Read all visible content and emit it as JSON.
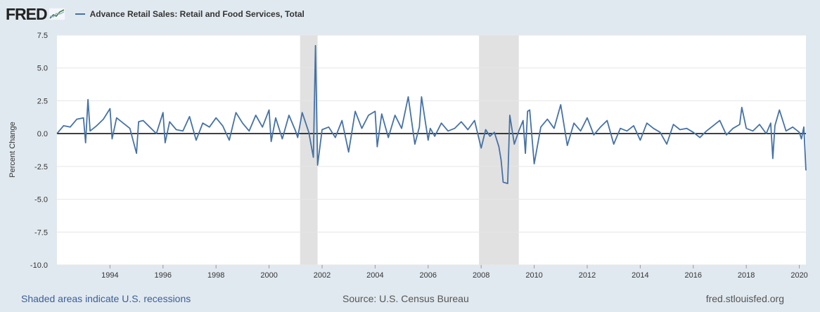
{
  "brand": {
    "name": "FRED"
  },
  "legend": {
    "series_name": "Advance Retail Sales: Retail and Food Services, Total",
    "color": "#4572a7"
  },
  "footer": {
    "recessions_note": "Shaded areas indicate U.S. recessions",
    "source": "Source: U.S. Census Bureau",
    "site": "fred.stlouisfed.org"
  },
  "chart_data": {
    "type": "line",
    "ylabel": "Percent Change",
    "ylim": [
      -10.0,
      7.5
    ],
    "yticks": [
      "7.5",
      "5.0",
      "2.5",
      "0.0",
      "-2.5",
      "-5.0",
      "-7.5",
      "-10.0"
    ],
    "ytick_values": [
      7.5,
      5.0,
      2.5,
      0.0,
      -2.5,
      -5.0,
      -7.5,
      -10.0
    ],
    "xticks": [
      "1994",
      "1996",
      "1998",
      "2000",
      "2002",
      "2004",
      "2006",
      "2008",
      "2010",
      "2012",
      "2014",
      "2016",
      "2018",
      "2020"
    ],
    "xrange": [
      1992.0,
      2020.25
    ],
    "grid": true,
    "zero_line": true,
    "recessions": [
      [
        2001.17,
        2001.83
      ],
      [
        2007.92,
        2009.42
      ]
    ],
    "series": [
      {
        "name": "Advance Retail Sales: Retail and Food Services, Total",
        "color": "#4572a7",
        "x": [
          1992.0,
          1992.25,
          1992.5,
          1992.75,
          1993.0,
          1993.08,
          1993.17,
          1993.25,
          1993.5,
          1993.75,
          1994.0,
          1994.08,
          1994.25,
          1994.5,
          1994.75,
          1995.0,
          1995.08,
          1995.25,
          1995.5,
          1995.75,
          1996.0,
          1996.08,
          1996.25,
          1996.5,
          1996.75,
          1997.0,
          1997.25,
          1997.5,
          1997.75,
          1998.0,
          1998.25,
          1998.5,
          1998.75,
          1999.0,
          1999.25,
          1999.5,
          1999.75,
          2000.0,
          2000.08,
          2000.25,
          2000.5,
          2000.75,
          2001.0,
          2001.08,
          2001.25,
          2001.5,
          2001.67,
          2001.75,
          2001.83,
          2002.0,
          2002.25,
          2002.5,
          2002.75,
          2003.0,
          2003.25,
          2003.5,
          2003.75,
          2004.0,
          2004.08,
          2004.25,
          2004.5,
          2004.75,
          2005.0,
          2005.25,
          2005.5,
          2005.67,
          2005.75,
          2006.0,
          2006.08,
          2006.25,
          2006.5,
          2006.75,
          2007.0,
          2007.25,
          2007.5,
          2007.75,
          2008.0,
          2008.17,
          2008.33,
          2008.5,
          2008.67,
          2008.75,
          2008.83,
          2009.0,
          2009.08,
          2009.25,
          2009.42,
          2009.58,
          2009.67,
          2009.75,
          2009.83,
          2010.0,
          2010.25,
          2010.5,
          2010.75,
          2011.0,
          2011.25,
          2011.5,
          2011.75,
          2012.0,
          2012.25,
          2012.5,
          2012.75,
          2013.0,
          2013.25,
          2013.5,
          2013.75,
          2014.0,
          2014.25,
          2014.5,
          2014.75,
          2015.0,
          2015.25,
          2015.5,
          2015.75,
          2016.0,
          2016.25,
          2016.5,
          2016.75,
          2017.0,
          2017.25,
          2017.5,
          2017.75,
          2017.83,
          2018.0,
          2018.25,
          2018.5,
          2018.75,
          2018.92,
          2019.0,
          2019.08,
          2019.25,
          2019.5,
          2019.75,
          2020.0,
          2020.08,
          2020.17,
          2020.25
        ],
        "y": [
          0.0,
          0.6,
          0.5,
          1.1,
          1.2,
          -0.7,
          2.6,
          0.2,
          0.6,
          1.1,
          1.9,
          -0.4,
          1.2,
          0.8,
          0.4,
          -1.5,
          0.9,
          1.0,
          0.5,
          0.0,
          1.6,
          -0.7,
          0.9,
          0.3,
          0.2,
          1.3,
          -0.5,
          0.8,
          0.5,
          1.2,
          0.6,
          -0.5,
          1.6,
          0.8,
          0.2,
          1.4,
          0.5,
          1.8,
          -0.6,
          1.2,
          -0.4,
          1.4,
          0.2,
          -0.3,
          1.6,
          0.1,
          -1.8,
          6.7,
          -2.4,
          0.3,
          0.5,
          -0.3,
          1.0,
          -1.4,
          1.7,
          0.4,
          1.4,
          1.7,
          -1.0,
          1.5,
          -0.3,
          1.4,
          0.4,
          2.8,
          -0.8,
          0.5,
          2.8,
          -0.5,
          0.4,
          -0.2,
          0.8,
          0.2,
          0.4,
          0.9,
          0.3,
          1.0,
          -1.1,
          0.3,
          -0.2,
          0.1,
          -1.0,
          -2.0,
          -3.7,
          -3.8,
          1.4,
          -0.8,
          0.2,
          1.0,
          -1.5,
          1.7,
          1.8,
          -2.3,
          0.5,
          1.1,
          0.4,
          2.2,
          -0.9,
          0.8,
          0.2,
          1.2,
          -0.1,
          0.5,
          1.0,
          -0.8,
          0.4,
          0.2,
          0.6,
          -0.5,
          0.8,
          0.4,
          0.1,
          -0.8,
          0.7,
          0.3,
          0.4,
          0.1,
          -0.3,
          0.2,
          0.6,
          1.0,
          -0.1,
          0.4,
          0.7,
          2.0,
          0.4,
          0.2,
          0.7,
          0.0,
          0.8,
          -1.9,
          0.6,
          1.8,
          0.2,
          0.5,
          0.1,
          -0.4,
          0.5,
          -2.8
        ]
      }
    ]
  }
}
